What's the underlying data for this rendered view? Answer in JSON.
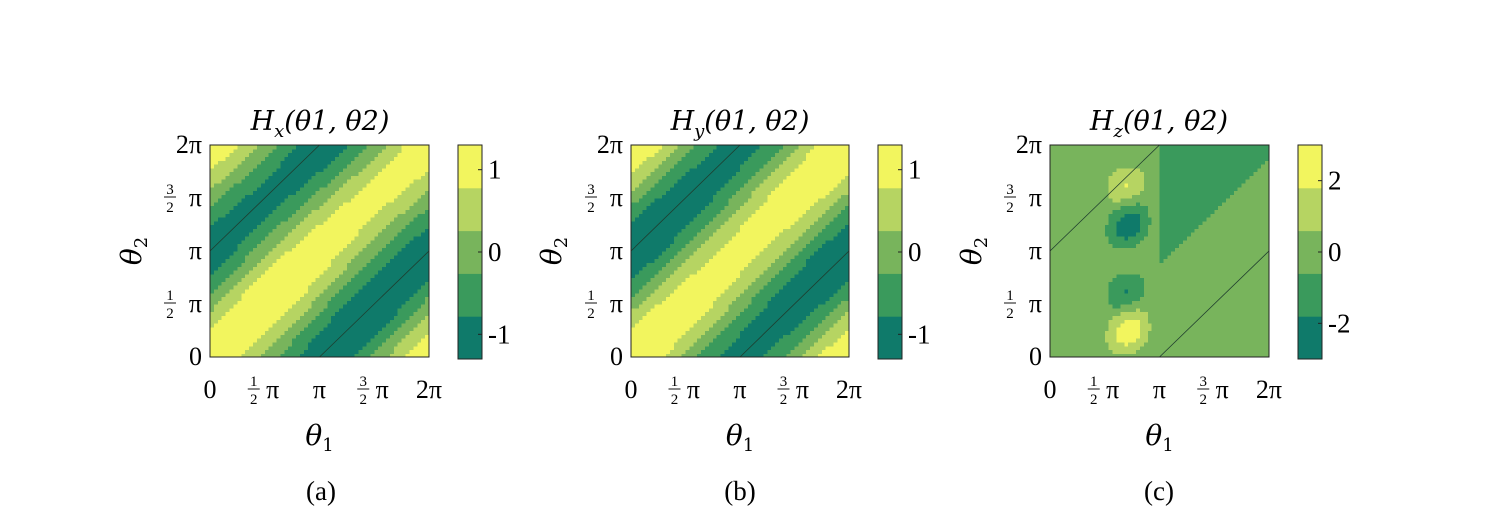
{
  "chart_data": [
    {
      "type": "heatmap",
      "title": "Hx(θ1, θ2)",
      "title_parts": {
        "main": "H",
        "sub": "x",
        "args": "(θ1, θ2)"
      },
      "xlabel": "θ1",
      "ylabel": "θ2",
      "xlim": [
        0,
        6.2832
      ],
      "ylim": [
        0,
        6.2832
      ],
      "x_ticks": [
        "0",
        "½π",
        "π",
        "³⁄₂π",
        "2π"
      ],
      "y_ticks": [
        "0",
        "½π",
        "π",
        "³⁄₂π",
        "2π"
      ],
      "colorbar": {
        "ticks": [
          "1",
          "0",
          "-1"
        ],
        "tick_values": [
          1,
          0,
          -1
        ],
        "range": [
          -1.3,
          1.3
        ]
      },
      "field": "cos(θ1 − θ2) with diagonal discontinuities",
      "caption": "(a)"
    },
    {
      "type": "heatmap",
      "title": "Hy(θ1, θ2)",
      "title_parts": {
        "main": "H",
        "sub": "y",
        "args": "(θ1, θ2)"
      },
      "xlabel": "θ1",
      "ylabel": "θ2",
      "xlim": [
        0,
        6.2832
      ],
      "ylim": [
        0,
        6.2832
      ],
      "x_ticks": [
        "0",
        "½π",
        "π",
        "³⁄₂π",
        "2π"
      ],
      "y_ticks": [
        "0",
        "½π",
        "π",
        "³⁄₂π",
        "2π"
      ],
      "colorbar": {
        "ticks": [
          "1",
          "0",
          "-1"
        ],
        "tick_values": [
          1,
          0,
          -1
        ],
        "range": [
          -1.3,
          1.3
        ]
      },
      "field": "sin(θ1 − θ2) with diagonal discontinuities",
      "caption": "(b)"
    },
    {
      "type": "heatmap",
      "title": "Hz(θ1, θ2)",
      "title_parts": {
        "main": "H",
        "sub": "z",
        "args": "(θ1, θ2)"
      },
      "xlabel": "θ1",
      "ylabel": "θ2",
      "xlim": [
        0,
        6.2832
      ],
      "ylim": [
        0,
        6.2832
      ],
      "x_ticks": [
        "0",
        "½π",
        "π",
        "³⁄₂π",
        "2π"
      ],
      "y_ticks": [
        "0",
        "½π",
        "π",
        "³⁄₂π",
        "2π"
      ],
      "colorbar": {
        "ticks": [
          "2",
          "0",
          "-2"
        ],
        "tick_values": [
          2,
          0,
          -2
        ],
        "range": [
          -3,
          3
        ]
      },
      "field": "localized lobes for θ1 in (0.4π, π), flat elsewhere",
      "caption": "(c)"
    }
  ],
  "colormap": [
    "#0f7a6a",
    "#3a9a5c",
    "#78b45c",
    "#b6d462",
    "#f2f55e"
  ]
}
